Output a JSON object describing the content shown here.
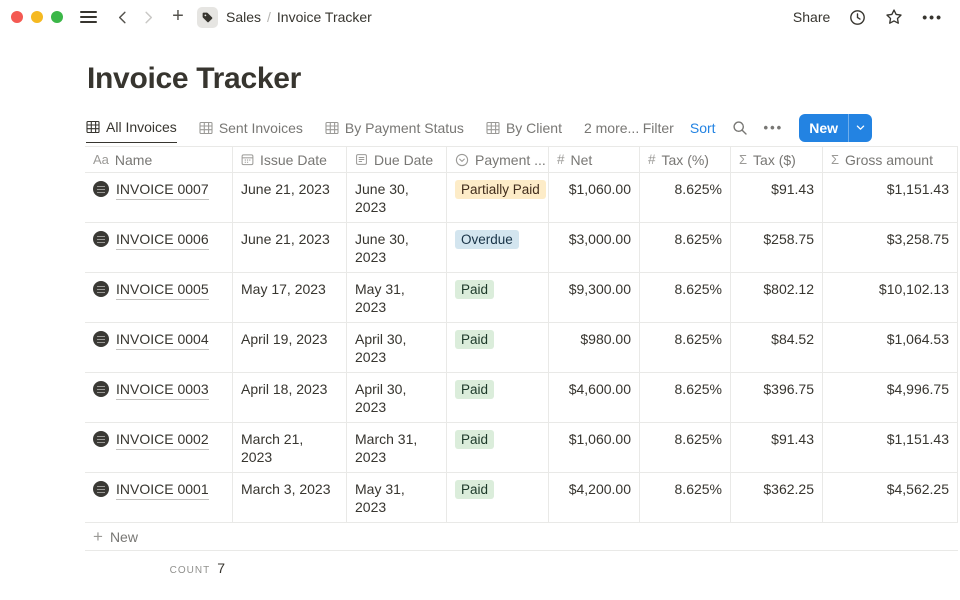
{
  "titlebar": {
    "breadcrumb": {
      "workspace": "Sales",
      "divider": "/",
      "page": "Invoice Tracker"
    },
    "share_label": "Share"
  },
  "page_title": "Invoice Tracker",
  "views": {
    "tabs": [
      {
        "label": "All Invoices",
        "active": true
      },
      {
        "label": "Sent Invoices",
        "active": false
      },
      {
        "label": "By Payment Status",
        "active": false
      },
      {
        "label": "By Client",
        "active": false
      }
    ],
    "more_label": "2 more..."
  },
  "toolbar": {
    "filter_label": "Filter",
    "sort_label": "Sort",
    "new_label": "New"
  },
  "table": {
    "columns": [
      {
        "label": "Name",
        "icon": "text-property-icon"
      },
      {
        "label": "Issue Date",
        "icon": "calendar-icon"
      },
      {
        "label": "Due Date",
        "icon": "calendar-note-icon"
      },
      {
        "label": "Payment ...",
        "icon": "select-property-icon"
      },
      {
        "label": "Net",
        "icon": "number-property-icon"
      },
      {
        "label": "Tax (%)",
        "icon": "number-property-icon"
      },
      {
        "label": "Tax ($)",
        "icon": "formula-property-icon"
      },
      {
        "label": "Gross amount",
        "icon": "formula-property-icon"
      }
    ],
    "rows": [
      {
        "name": "INVOICE 0007",
        "issue_date": "June 21, 2023",
        "due_date": "June 30, 2023",
        "status": {
          "label": "Partially Paid",
          "color": "yellow"
        },
        "net": "$1,060.00",
        "tax_pct": "8.625%",
        "tax_usd": "$91.43",
        "gross": "$1,151.43"
      },
      {
        "name": "INVOICE 0006",
        "issue_date": "June 21, 2023",
        "due_date": "June 30, 2023",
        "status": {
          "label": "Overdue",
          "color": "blue"
        },
        "net": "$3,000.00",
        "tax_pct": "8.625%",
        "tax_usd": "$258.75",
        "gross": "$3,258.75"
      },
      {
        "name": "INVOICE 0005",
        "issue_date": "May 17, 2023",
        "due_date": "May 31, 2023",
        "status": {
          "label": "Paid",
          "color": "green"
        },
        "net": "$9,300.00",
        "tax_pct": "8.625%",
        "tax_usd": "$802.12",
        "gross": "$10,102.13"
      },
      {
        "name": "INVOICE 0004",
        "issue_date": "April 19, 2023",
        "due_date": "April 30, 2023",
        "status": {
          "label": "Paid",
          "color": "green"
        },
        "net": "$980.00",
        "tax_pct": "8.625%",
        "tax_usd": "$84.52",
        "gross": "$1,064.53"
      },
      {
        "name": "INVOICE 0003",
        "issue_date": "April 18, 2023",
        "due_date": "April 30, 2023",
        "status": {
          "label": "Paid",
          "color": "green"
        },
        "net": "$4,600.00",
        "tax_pct": "8.625%",
        "tax_usd": "$396.75",
        "gross": "$4,996.75"
      },
      {
        "name": "INVOICE 0002",
        "issue_date": "March 21, 2023",
        "due_date": "March 31, 2023",
        "status": {
          "label": "Paid",
          "color": "green"
        },
        "net": "$1,060.00",
        "tax_pct": "8.625%",
        "tax_usd": "$91.43",
        "gross": "$1,151.43"
      },
      {
        "name": "INVOICE 0001",
        "issue_date": "March 3, 2023",
        "due_date": "May 31, 2023",
        "status": {
          "label": "Paid",
          "color": "green"
        },
        "net": "$4,200.00",
        "tax_pct": "8.625%",
        "tax_usd": "$362.25",
        "gross": "$4,562.25"
      }
    ]
  },
  "footer": {
    "new_row_label": "New",
    "count_label": "count",
    "count_value": "7"
  },
  "colors": {
    "accent_blue": "#2383e2",
    "badges": {
      "yellow": {
        "bg": "#fdecc8",
        "text": "#402c1b"
      },
      "blue": {
        "bg": "#d3e5ef",
        "text": "#183347"
      },
      "green": {
        "bg": "#dbeddb",
        "text": "#1c3829"
      }
    }
  }
}
